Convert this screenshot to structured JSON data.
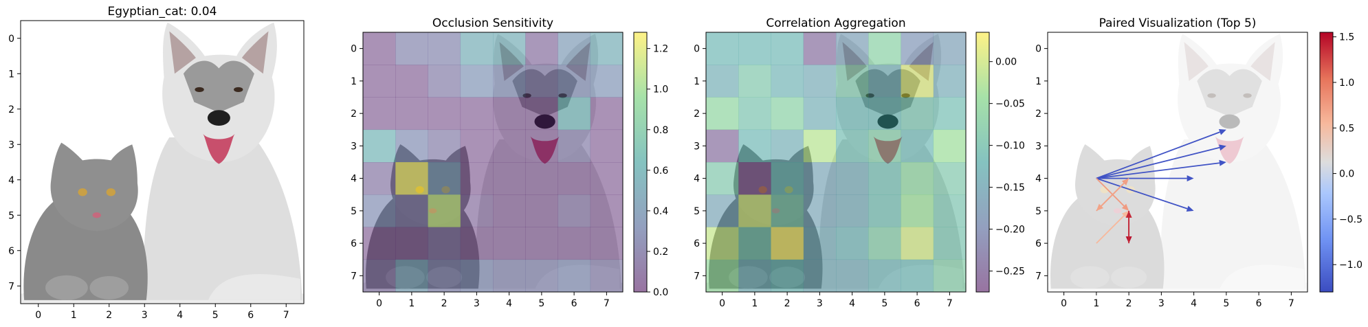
{
  "colors": {
    "viridis": [
      "#440154",
      "#3b528b",
      "#21918c",
      "#5ec962",
      "#fde725"
    ],
    "coolwarm": [
      "#3b4cc0",
      "#6f92f3",
      "#aac7fd",
      "#dddddd",
      "#f7b89c",
      "#e7745b",
      "#b40426"
    ],
    "overlay_alpha": 0.45,
    "arrow_pos": "#b40426",
    "arrow_neg": "#3b4cc0",
    "photo_background": "#ffffff",
    "dog_fur": "#d9d9d9",
    "dog_grey": "#8f8f8f",
    "cat_fur": "#8c8c8c"
  },
  "photo": {
    "description_icons": [
      "cat-icon",
      "dog-icon"
    ]
  },
  "chart_data": [
    {
      "type": "image",
      "title": "Egyptian_cat: 0.04",
      "x_ticks": [
        "0",
        "1",
        "2",
        "3",
        "4",
        "5",
        "6",
        "7"
      ],
      "y_ticks": [
        "0",
        "1",
        "2",
        "3",
        "4",
        "5",
        "6",
        "7"
      ],
      "xlim": [
        -0.5,
        7.5
      ],
      "ylim": [
        7.5,
        -0.5
      ]
    },
    {
      "type": "heatmap",
      "title": "Occlusion Sensitivity",
      "x_ticks": [
        "0",
        "1",
        "2",
        "3",
        "4",
        "5",
        "6",
        "7"
      ],
      "y_ticks": [
        "0",
        "1",
        "2",
        "3",
        "4",
        "5",
        "6",
        "7"
      ],
      "vmin": 0.0,
      "vmax": 1.28,
      "colorbar_ticks": [
        "0.0",
        "0.2",
        "0.4",
        "0.6",
        "0.8",
        "1.0",
        "1.2"
      ],
      "colorbar_values": [
        0.0,
        0.2,
        0.4,
        0.6,
        0.8,
        1.0,
        1.2
      ],
      "colormap": "viridis",
      "values": [
        [
          0.05,
          0.25,
          0.25,
          0.55,
          0.55,
          0.1,
          0.4,
          0.55
        ],
        [
          0.05,
          0.05,
          0.2,
          0.35,
          0.3,
          0.2,
          0.3,
          0.35
        ],
        [
          0.05,
          0.05,
          0.05,
          0.05,
          0.05,
          0.05,
          0.6,
          0.05
        ],
        [
          0.6,
          0.3,
          0.2,
          0.05,
          0.05,
          0.05,
          0.2,
          0.05
        ],
        [
          0.15,
          1.25,
          0.4,
          0.05,
          0.05,
          0.05,
          0.05,
          0.05
        ],
        [
          0.3,
          0.2,
          1.1,
          0.1,
          0.05,
          0.05,
          0.15,
          0.05
        ],
        [
          0.05,
          0.05,
          0.15,
          0.05,
          0.05,
          0.05,
          0.05,
          0.05
        ],
        [
          0.15,
          0.45,
          0.25,
          0.3,
          0.25,
          0.25,
          0.3,
          0.2
        ]
      ]
    },
    {
      "type": "heatmap",
      "title": "Correlation Aggregation",
      "x_ticks": [
        "0",
        "1",
        "2",
        "3",
        "4",
        "5",
        "6",
        "7"
      ],
      "y_ticks": [
        "0",
        "1",
        "2",
        "3",
        "4",
        "5",
        "6",
        "7"
      ],
      "vmin": -0.275,
      "vmax": 0.035,
      "colorbar_ticks": [
        "0.00",
        "−0.05",
        "−0.10",
        "−0.15",
        "−0.20",
        "−0.25"
      ],
      "colorbar_values": [
        0.0,
        -0.05,
        -0.1,
        -0.15,
        -0.2,
        -0.25
      ],
      "colormap": "viridis",
      "values": [
        [
          -0.12,
          -0.12,
          -0.12,
          -0.25,
          -0.17,
          -0.07,
          -0.19,
          -0.17
        ],
        [
          -0.14,
          -0.09,
          -0.13,
          -0.15,
          -0.09,
          -0.14,
          0.01,
          -0.15
        ],
        [
          -0.06,
          -0.1,
          -0.07,
          -0.14,
          -0.12,
          -0.12,
          -0.1,
          -0.11
        ],
        [
          -0.25,
          -0.12,
          -0.14,
          -0.02,
          -0.11,
          -0.08,
          -0.12,
          -0.04
        ],
        [
          -0.09,
          -0.27,
          -0.12,
          -0.16,
          -0.15,
          -0.11,
          -0.06,
          -0.09
        ],
        [
          -0.16,
          0.0,
          -0.09,
          -0.16,
          -0.15,
          -0.11,
          -0.04,
          -0.1
        ],
        [
          -0.01,
          -0.1,
          0.03,
          -0.15,
          -0.13,
          -0.08,
          0.0,
          -0.1
        ],
        [
          -0.05,
          -0.14,
          -0.12,
          -0.15,
          -0.15,
          -0.13,
          -0.12,
          -0.08
        ]
      ]
    },
    {
      "type": "arrows",
      "title": "Paired Visualization (Top 5)",
      "x_ticks": [
        "0",
        "1",
        "2",
        "3",
        "4",
        "5",
        "6",
        "7"
      ],
      "y_ticks": [
        "0",
        "1",
        "2",
        "3",
        "4",
        "5",
        "6",
        "7"
      ],
      "vmin": -1.3,
      "vmax": 1.55,
      "colorbar_ticks": [
        "1.5",
        "1.0",
        "0.5",
        "0.0",
        "−0.5",
        "−1.0"
      ],
      "colorbar_values": [
        1.5,
        1.0,
        0.5,
        0.0,
        -0.5,
        -1.0
      ],
      "colormap": "coolwarm",
      "arrows": [
        {
          "x0": 1,
          "y0": 4,
          "x1": 5,
          "y1": 2.5,
          "value": -1.25
        },
        {
          "x0": 1,
          "y0": 4,
          "x1": 5,
          "y1": 3,
          "value": -1.25
        },
        {
          "x0": 1,
          "y0": 4,
          "x1": 5,
          "y1": 3.5,
          "value": -1.25
        },
        {
          "x0": 1,
          "y0": 4,
          "x1": 4,
          "y1": 4,
          "value": -1.25
        },
        {
          "x0": 1,
          "y0": 4,
          "x1": 4,
          "y1": 5,
          "value": -1.25
        },
        {
          "x0": 1,
          "y0": 4,
          "x1": 2,
          "y1": 5,
          "value": 0.8
        },
        {
          "x0": 1,
          "y0": 5,
          "x1": 2,
          "y1": 4,
          "value": 0.8
        },
        {
          "x0": 2,
          "y0": 4,
          "x1": 1,
          "y1": 5,
          "value": 0.75
        },
        {
          "x0": 1,
          "y0": 6,
          "x1": 2,
          "y1": 5,
          "value": 0.6
        },
        {
          "x0": 2,
          "y0": 5,
          "x1": 2,
          "y1": 6,
          "value": 1.5
        },
        {
          "x0": 2,
          "y0": 6,
          "x1": 2,
          "y1": 5,
          "value": 1.4
        }
      ]
    }
  ]
}
